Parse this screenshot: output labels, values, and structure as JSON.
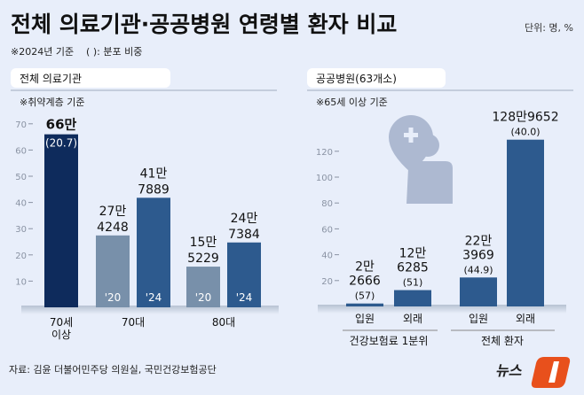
{
  "title": "전체 의료기관·공공병원 연령별 환자 비교",
  "unit": "단위: 명, %",
  "note": "※2024년 기준    ( ): 분포 비중",
  "source": "자료: 김윤 더불어민주당 의원실, 국민건강보험공단",
  "logo_text": "뉴스1",
  "colors": {
    "background": "#e8eefa",
    "dark_navy": "#0e2b5c",
    "blue": "#2d5a8e",
    "gray_blue": "#7890aa",
    "logo_orange": "#e8501c"
  },
  "chart_data": [
    {
      "type": "bar",
      "title": "전체 의료기관",
      "subtitle": "※취약계층 기준",
      "ylim": [
        0,
        70
      ],
      "yticks": [
        10,
        20,
        30,
        40,
        50,
        60,
        70
      ],
      "unit": "만 명",
      "bars": [
        {
          "group": "70세\n이상",
          "year": "",
          "value": 66.0,
          "label1": "66만",
          "label2": "(20.7)",
          "color": "#0e2b5c"
        },
        {
          "group": "70대",
          "year": "'20",
          "value": 27.4248,
          "label1": "27만",
          "label2": "4248",
          "color": "#7890aa"
        },
        {
          "group": "70대",
          "year": "'24",
          "value": 41.7889,
          "label1": "41만",
          "label2": "7889",
          "color": "#2d5a8e"
        },
        {
          "group": "80대",
          "year": "'20",
          "value": 15.5229,
          "label1": "15만",
          "label2": "5229",
          "color": "#7890aa"
        },
        {
          "group": "80대",
          "year": "'24",
          "value": 24.7384,
          "label1": "24만",
          "label2": "7384",
          "color": "#2d5a8e"
        }
      ],
      "group_labels": [
        "70세",
        "이상",
        "70대",
        "80대"
      ]
    },
    {
      "type": "bar",
      "title": "공공병원(63개소)",
      "subtitle": "※65세 이상 기준",
      "ylim": [
        0,
        130
      ],
      "yticks": [
        20,
        40,
        60,
        80,
        100,
        120
      ],
      "unit": "만 명",
      "icon": "hospital-patient-icon",
      "bars": [
        {
          "category": "입원",
          "group": "건강보험료 1분위",
          "value": 2.2666,
          "labels": [
            "2만",
            "2666",
            "(57)"
          ],
          "color": "#2d5a8e"
        },
        {
          "category": "외래",
          "group": "건강보험료 1분위",
          "value": 12.6285,
          "labels": [
            "12만",
            "6285",
            "(51)"
          ],
          "color": "#2d5a8e"
        },
        {
          "category": "입원",
          "group": "전체 환자",
          "value": 22.3969,
          "labels": [
            "22만",
            "3969",
            "(44.9)"
          ],
          "color": "#2d5a8e"
        },
        {
          "category": "외래",
          "group": "전체 환자",
          "value": 128.9652,
          "labels": [
            "128만9652",
            "(40.0)"
          ],
          "color": "#2d5a8e"
        }
      ],
      "group_labels": [
        "건강보험료 1분위",
        "전체 환자"
      ]
    }
  ]
}
